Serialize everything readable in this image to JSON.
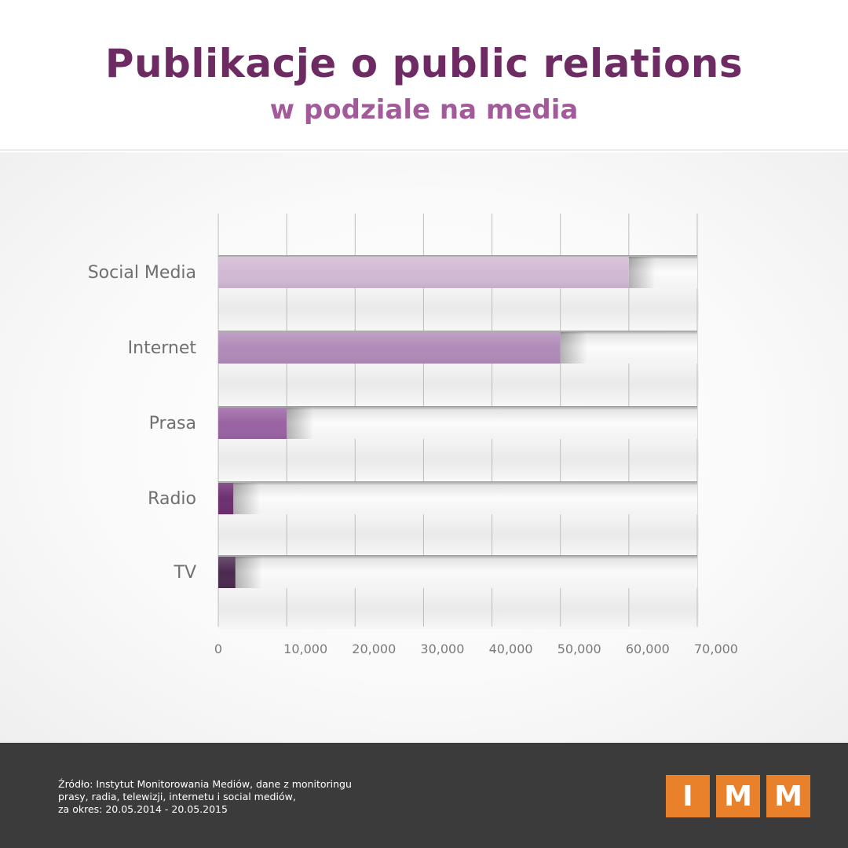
{
  "header": {
    "title": "Publikacje o public relations",
    "subtitle": "w podziale na media"
  },
  "chart_data": {
    "type": "bar",
    "orientation": "horizontal",
    "categories": [
      "Social Media",
      "Internet",
      "Prasa",
      "Radio",
      "TV"
    ],
    "values": [
      60000,
      50000,
      10000,
      2200,
      2500
    ],
    "bar_colors": [
      "#d1b9d3",
      "#b18bb9",
      "#9a63a3",
      "#6d2f70",
      "#4b2a4f"
    ],
    "xlim": [
      0,
      70000
    ],
    "x_ticks": [
      "0",
      "10,000",
      "20,000",
      "30,000",
      "40,000",
      "50,000",
      "60,000",
      "70,000"
    ],
    "x_tick_values": [
      0,
      10000,
      20000,
      30000,
      40000,
      50000,
      60000,
      70000
    ],
    "grid": true,
    "title": "Publikacje o public relations",
    "subtitle": "w podziale na media",
    "xlabel": "",
    "ylabel": ""
  },
  "footer": {
    "source_lines": [
      "Źródło: Instytut Monitorowania Mediów, dane z monitoringu",
      "prasy, radia, telewizji, internetu i social mediów,",
      "za okres: 20.05.2014 - 20.05.2015"
    ],
    "logo_letters": [
      "I",
      "M",
      "M"
    ]
  },
  "colors": {
    "title": "#6e2a63",
    "subtitle": "#a25a9b",
    "footer_bg": "#3b3b3b",
    "logo": "#e9812a"
  }
}
